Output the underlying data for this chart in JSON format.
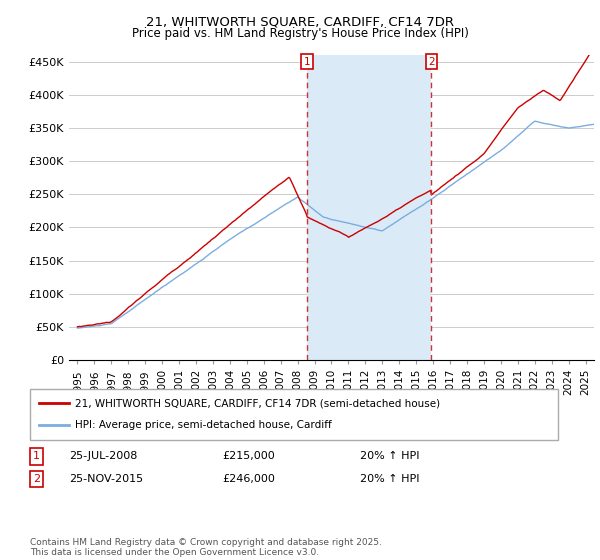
{
  "title": "21, WHITWORTH SQUARE, CARDIFF, CF14 7DR",
  "subtitle": "Price paid vs. HM Land Registry's House Price Index (HPI)",
  "legend_line1": "21, WHITWORTH SQUARE, CARDIFF, CF14 7DR (semi-detached house)",
  "legend_line2": "HPI: Average price, semi-detached house, Cardiff",
  "footnote": "Contains HM Land Registry data © Crown copyright and database right 2025.\nThis data is licensed under the Open Government Licence v3.0.",
  "annotation1": {
    "num": "1",
    "date": "25-JUL-2008",
    "price": "£215,000",
    "change": "20% ↑ HPI"
  },
  "annotation2": {
    "num": "2",
    "date": "25-NOV-2015",
    "price": "£246,000",
    "change": "20% ↑ HPI"
  },
  "vline1_x": 2008.56,
  "vline2_x": 2015.9,
  "shade_xmin": 2008.56,
  "shade_xmax": 2015.9,
  "red_color": "#cc0000",
  "blue_color": "#7aade0",
  "shade_color": "#daeaf7",
  "xlim": [
    1994.5,
    2025.5
  ],
  "ylim": [
    0,
    460000
  ],
  "yticks": [
    0,
    50000,
    100000,
    150000,
    200000,
    250000,
    300000,
    350000,
    400000,
    450000
  ],
  "ytick_labels": [
    "£0",
    "£50K",
    "£100K",
    "£150K",
    "£200K",
    "£250K",
    "£300K",
    "£350K",
    "£400K",
    "£450K"
  ],
  "xticks": [
    1995,
    1996,
    1997,
    1998,
    1999,
    2000,
    2001,
    2002,
    2003,
    2004,
    2005,
    2006,
    2007,
    2008,
    2009,
    2010,
    2011,
    2012,
    2013,
    2014,
    2015,
    2016,
    2017,
    2018,
    2019,
    2020,
    2021,
    2022,
    2023,
    2024,
    2025
  ]
}
